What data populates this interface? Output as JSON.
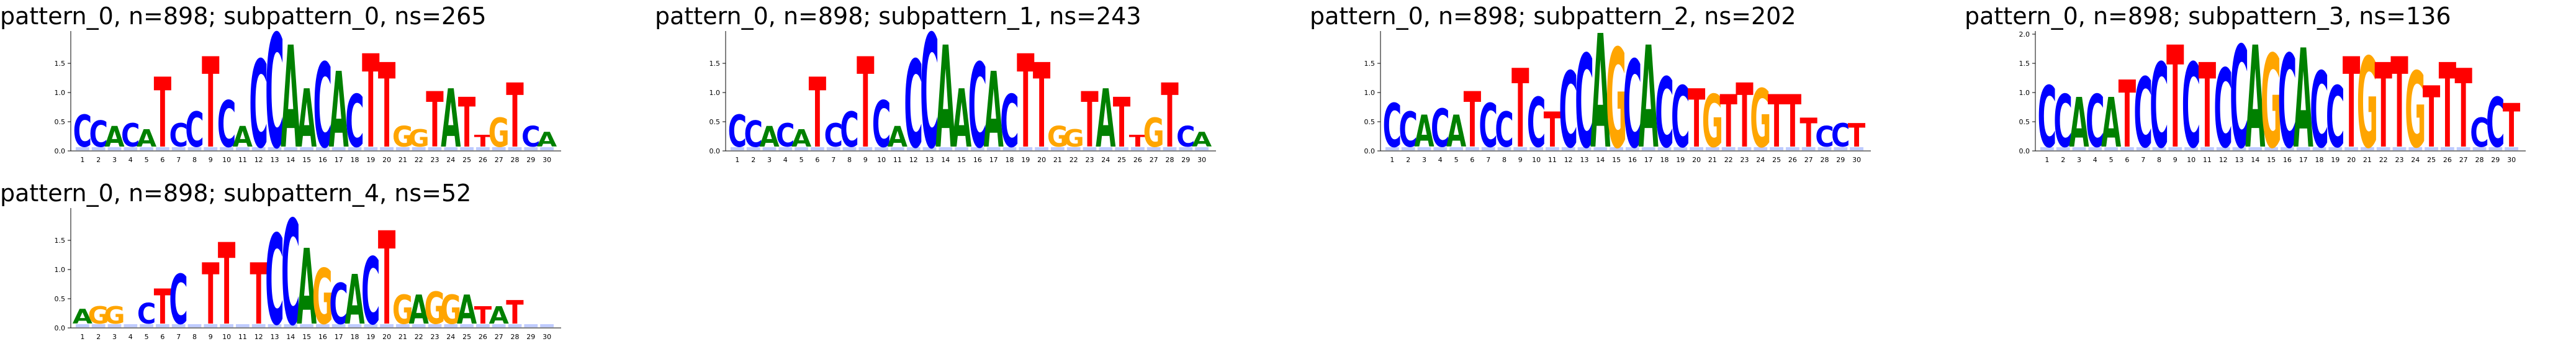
{
  "chart_data": [
    {
      "type": "sequence-logo",
      "title": "pattern_0, n=898; subpattern_0, ns=265",
      "ylim": [
        0,
        2
      ],
      "ytick_labels": [
        "0.0",
        "0.5",
        "1.0",
        "1.5"
      ],
      "positions": [
        "1",
        "2",
        "3",
        "4",
        "5",
        "6",
        "7",
        "8",
        "9",
        "10",
        "11",
        "12",
        "13",
        "14",
        "15",
        "16",
        "17",
        "18",
        "19",
        "20",
        "21",
        "22",
        "23",
        "24",
        "25",
        "26",
        "27",
        "28",
        "29",
        "30"
      ],
      "consensus": [
        "C",
        "C",
        "A",
        "C",
        "A",
        "T",
        "C",
        "C",
        "T",
        "C",
        "A",
        "C",
        "C",
        "A",
        "A",
        "C",
        "A",
        "C",
        "T",
        "T",
        "G",
        "G",
        "T",
        "A",
        "T",
        "T",
        "G",
        "T",
        "C",
        "A"
      ],
      "heights": [
        0.55,
        0.45,
        0.35,
        0.4,
        0.3,
        1.2,
        0.4,
        0.6,
        1.55,
        0.8,
        0.35,
        1.5,
        1.95,
        1.75,
        1.0,
        1.45,
        1.3,
        0.9,
        1.6,
        1.45,
        0.35,
        0.3,
        0.95,
        1.0,
        0.85,
        0.2,
        0.5,
        1.1,
        0.35,
        0.25
      ]
    },
    {
      "type": "sequence-logo",
      "title": "pattern_0, n=898; subpattern_1, ns=243",
      "ylim": [
        0,
        2
      ],
      "ytick_labels": [
        "0.0",
        "0.5",
        "1.0",
        "1.5"
      ],
      "positions": [
        "1",
        "2",
        "3",
        "4",
        "5",
        "6",
        "7",
        "8",
        "9",
        "10",
        "11",
        "12",
        "13",
        "14",
        "15",
        "16",
        "17",
        "18",
        "19",
        "20",
        "21",
        "22",
        "23",
        "24",
        "25",
        "26",
        "27",
        "28",
        "29",
        "30"
      ],
      "consensus": [
        "C",
        "C",
        "A",
        "C",
        "A",
        "T",
        "C",
        "C",
        "T",
        "C",
        "A",
        "C",
        "C",
        "A",
        "A",
        "C",
        "A",
        "C",
        "T",
        "T",
        "G",
        "G",
        "T",
        "A",
        "T",
        "T",
        "G",
        "T",
        "C",
        "A"
      ],
      "heights": [
        0.55,
        0.45,
        0.35,
        0.4,
        0.3,
        1.2,
        0.4,
        0.6,
        1.55,
        0.8,
        0.35,
        1.5,
        1.95,
        1.75,
        1.0,
        1.45,
        1.3,
        0.9,
        1.6,
        1.45,
        0.35,
        0.3,
        0.95,
        1.0,
        0.85,
        0.2,
        0.5,
        1.1,
        0.35,
        0.25
      ]
    },
    {
      "type": "sequence-logo",
      "title": "pattern_0, n=898; subpattern_2, ns=202",
      "ylim": [
        0,
        2
      ],
      "ytick_labels": [
        "0.0",
        "0.5",
        "1.0",
        "1.5"
      ],
      "positions": [
        "1",
        "2",
        "3",
        "4",
        "5",
        "6",
        "7",
        "8",
        "9",
        "10",
        "11",
        "12",
        "13",
        "14",
        "15",
        "16",
        "17",
        "18",
        "19",
        "20",
        "21",
        "22",
        "23",
        "24",
        "25",
        "26",
        "27",
        "28",
        "29",
        "30"
      ],
      "consensus": [
        "C",
        "C",
        "A",
        "C",
        "A",
        "T",
        "C",
        "C",
        "T",
        "C",
        "T",
        "C",
        "C",
        "A",
        "G",
        "C",
        "A",
        "C",
        "C",
        "T",
        "G",
        "T",
        "T",
        "G",
        "T",
        "T",
        "T",
        "C",
        "C",
        "T"
      ],
      "heights": [
        0.75,
        0.6,
        0.55,
        0.65,
        0.55,
        0.95,
        0.75,
        0.6,
        1.35,
        0.85,
        0.6,
        1.3,
        1.6,
        1.95,
        1.7,
        1.5,
        1.75,
        1.2,
        1.05,
        1.0,
        0.9,
        0.9,
        1.1,
        1.0,
        0.9,
        0.9,
        0.5,
        0.35,
        0.4,
        0.4
      ]
    },
    {
      "type": "sequence-logo",
      "title": "pattern_0, n=898; subpattern_3, ns=136",
      "ylim": [
        0,
        2
      ],
      "ytick_labels": [
        "0.0",
        "0.5",
        "1.0",
        "1.5",
        "2.0"
      ],
      "positions": [
        "1",
        "2",
        "3",
        "4",
        "5",
        "6",
        "7",
        "8",
        "9",
        "10",
        "11",
        "12",
        "13",
        "14",
        "15",
        "16",
        "17",
        "18",
        "19",
        "20",
        "21",
        "22",
        "23",
        "24",
        "25",
        "26",
        "27",
        "28",
        "29",
        "30"
      ],
      "consensus": [
        "C",
        "C",
        "A",
        "C",
        "A",
        "T",
        "C",
        "C",
        "T",
        "C",
        "T",
        "C",
        "C",
        "A",
        "G",
        "C",
        "A",
        "C",
        "C",
        "T",
        "G",
        "T",
        "T",
        "G",
        "T",
        "T",
        "T",
        "C",
        "C",
        "T"
      ],
      "heights": [
        1.05,
        0.9,
        0.85,
        0.9,
        0.85,
        1.15,
        1.2,
        1.45,
        1.75,
        1.45,
        1.45,
        1.35,
        1.75,
        1.75,
        1.6,
        1.6,
        1.7,
        1.3,
        1.05,
        1.55,
        1.55,
        1.45,
        1.55,
        1.3,
        1.05,
        1.45,
        1.35,
        0.5,
        0.85,
        0.75
      ]
    },
    {
      "type": "sequence-logo",
      "title": "pattern_0, n=898; subpattern_4, ns=52",
      "ylim": [
        0,
        2
      ],
      "ytick_labels": [
        "0.0",
        "0.5",
        "1.0",
        "1.5"
      ],
      "positions": [
        "1",
        "2",
        "3",
        "4",
        "5",
        "6",
        "7",
        "8",
        "9",
        "10",
        "11",
        "12",
        "13",
        "14",
        "15",
        "16",
        "17",
        "18",
        "19",
        "20",
        "21",
        "22",
        "23",
        "24",
        "25",
        "26",
        "27",
        "28",
        "29",
        "30"
      ],
      "consensus": [
        "A",
        "G",
        "G",
        "",
        "C",
        "T",
        "C",
        "",
        "T",
        "T",
        "",
        "T",
        "C",
        "C",
        "A",
        "G",
        "C",
        "A",
        "C",
        "T",
        "G",
        "A",
        "G",
        "G",
        "A",
        "T",
        "A",
        "T",
        "",
        ""
      ],
      "heights": [
        0.25,
        0.3,
        0.3,
        0.0,
        0.35,
        0.6,
        0.85,
        0.0,
        1.05,
        1.4,
        0.0,
        1.05,
        1.55,
        1.8,
        1.3,
        0.95,
        0.7,
        0.85,
        1.15,
        1.6,
        0.5,
        0.5,
        0.55,
        0.5,
        0.5,
        0.3,
        0.3,
        0.4,
        0.0,
        0.0
      ]
    }
  ],
  "colors": {
    "A": "#008000",
    "C": "#0000ff",
    "G": "#ffa500",
    "T": "#ff0000"
  }
}
